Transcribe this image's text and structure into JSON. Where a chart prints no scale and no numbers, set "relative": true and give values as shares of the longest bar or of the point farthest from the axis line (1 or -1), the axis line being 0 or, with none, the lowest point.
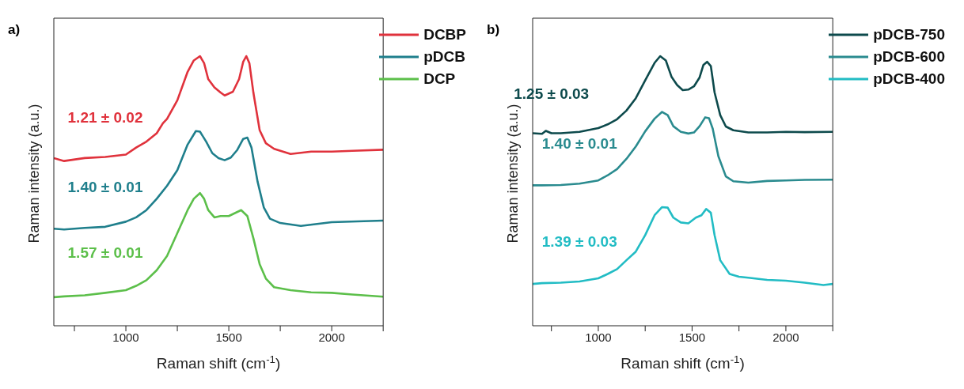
{
  "chart_data": [
    {
      "type": "line",
      "title": "a)",
      "xlabel": "Raman shift (cm$^{-1}$)",
      "ylabel": "Raman intensity (a.u.)",
      "relative": true,
      "xlim": [
        650,
        2250
      ],
      "xticks": [
        {
          "value": 750,
          "label": null
        },
        1000,
        {
          "value": 1250,
          "label": null
        },
        1500,
        {
          "value": 1750,
          "label": null
        },
        2000,
        {
          "value": 2250,
          "label": null
        }
      ],
      "tick_labels": "x",
      "grid": false,
      "legend": "top right",
      "marker": "none",
      "line_style": "solid",
      "annotations": [
        "1.21 ± 0.02",
        "1.40 ± 0.01",
        "1.57 ± 0.01"
      ],
      "series": [
        {
          "name": "DCBP",
          "color": "#e0323c",
          "x": [
            650,
            700,
            800,
            900,
            1000,
            1050,
            1100,
            1150,
            1180,
            1200,
            1250,
            1300,
            1330,
            1360,
            1380,
            1400,
            1430,
            1460,
            1480,
            1520,
            1550,
            1570,
            1585,
            1600,
            1620,
            1650,
            1680,
            1720,
            1800,
            1900,
            2000,
            2100,
            2250
          ],
          "values": [
            0.622,
            0.611,
            0.622,
            0.626,
            0.635,
            0.661,
            0.683,
            0.714,
            0.751,
            0.767,
            0.836,
            0.942,
            0.984,
            1.0,
            0.974,
            0.915,
            0.884,
            0.865,
            0.854,
            0.868,
            0.915,
            0.979,
            1.0,
            0.974,
            0.862,
            0.725,
            0.677,
            0.656,
            0.637,
            0.646,
            0.646,
            0.649,
            0.653
          ]
        },
        {
          "name": "pDCB",
          "color": "#1f7f8c",
          "x": [
            650,
            700,
            800,
            900,
            1000,
            1050,
            1100,
            1150,
            1200,
            1250,
            1300,
            1340,
            1360,
            1390,
            1420,
            1450,
            1480,
            1510,
            1540,
            1570,
            1590,
            1610,
            1640,
            1670,
            1700,
            1750,
            1850,
            2000,
            2250
          ],
          "values": [
            0.36,
            0.357,
            0.363,
            0.367,
            0.386,
            0.402,
            0.429,
            0.471,
            0.519,
            0.577,
            0.672,
            0.722,
            0.72,
            0.683,
            0.64,
            0.622,
            0.614,
            0.624,
            0.651,
            0.693,
            0.698,
            0.661,
            0.534,
            0.439,
            0.397,
            0.381,
            0.37,
            0.384,
            0.39
          ]
        },
        {
          "name": "DCP",
          "color": "#5cbf4a",
          "x": [
            650,
            700,
            800,
            900,
            1000,
            1050,
            1100,
            1150,
            1200,
            1250,
            1300,
            1330,
            1360,
            1380,
            1400,
            1430,
            1460,
            1500,
            1530,
            1560,
            1590,
            1620,
            1650,
            1680,
            1720,
            1800,
            1900,
            2000,
            2100,
            2250
          ],
          "values": [
            0.106,
            0.109,
            0.113,
            0.122,
            0.132,
            0.148,
            0.169,
            0.206,
            0.259,
            0.344,
            0.429,
            0.471,
            0.492,
            0.471,
            0.429,
            0.402,
            0.407,
            0.407,
            0.418,
            0.429,
            0.407,
            0.323,
            0.228,
            0.175,
            0.143,
            0.132,
            0.124,
            0.122,
            0.116,
            0.108
          ]
        }
      ]
    },
    {
      "type": "line",
      "title": "b)",
      "xlabel": "Raman shift (cm$^{-1}$)",
      "ylabel": "Raman intensity (a.u.)",
      "relative": true,
      "xlim": [
        650,
        2250
      ],
      "xticks": [
        {
          "value": 750,
          "label": null
        },
        1000,
        {
          "value": 1250,
          "label": null
        },
        1500,
        {
          "value": 1750,
          "label": null
        },
        2000,
        {
          "value": 2250,
          "label": null
        }
      ],
      "tick_labels": "x",
      "grid": false,
      "legend": "top right",
      "marker": "none",
      "line_style": "solid",
      "annotations": [
        "1.25 ± 0.03",
        "1.40 ± 0.01",
        "1.39 ± 0.03"
      ],
      "series": [
        {
          "name": "pDCB-750",
          "color": "#0d4a4c",
          "x": [
            650,
            700,
            720,
            750,
            800,
            900,
            1000,
            1050,
            1100,
            1150,
            1200,
            1250,
            1300,
            1330,
            1360,
            1390,
            1420,
            1450,
            1480,
            1510,
            1540,
            1560,
            1580,
            1600,
            1620,
            1650,
            1680,
            1720,
            1800,
            1900,
            2000,
            2100,
            2250
          ],
          "values": [
            0.714,
            0.712,
            0.723,
            0.714,
            0.714,
            0.719,
            0.733,
            0.747,
            0.766,
            0.798,
            0.844,
            0.91,
            0.975,
            1.0,
            0.984,
            0.924,
            0.893,
            0.874,
            0.876,
            0.888,
            0.921,
            0.967,
            0.979,
            0.963,
            0.865,
            0.781,
            0.739,
            0.725,
            0.717,
            0.717,
            0.719,
            0.718,
            0.719
          ]
        },
        {
          "name": "pDCB-600",
          "color": "#2a8b8f",
          "x": [
            650,
            700,
            800,
            900,
            1000,
            1050,
            1100,
            1150,
            1200,
            1250,
            1300,
            1340,
            1370,
            1400,
            1440,
            1480,
            1510,
            1540,
            1570,
            1590,
            1610,
            1640,
            1680,
            1720,
            1800,
            1900,
            2000,
            2100,
            2250
          ],
          "values": [
            0.521,
            0.521,
            0.522,
            0.527,
            0.539,
            0.558,
            0.581,
            0.619,
            0.665,
            0.721,
            0.768,
            0.793,
            0.781,
            0.74,
            0.719,
            0.713,
            0.717,
            0.74,
            0.773,
            0.77,
            0.731,
            0.629,
            0.554,
            0.536,
            0.531,
            0.537,
            0.539,
            0.541,
            0.542
          ]
        },
        {
          "name": "pDCB-400",
          "color": "#22bcc4",
          "x": [
            650,
            700,
            800,
            900,
            1000,
            1050,
            1100,
            1150,
            1200,
            1250,
            1300,
            1340,
            1370,
            1400,
            1440,
            1480,
            1520,
            1550,
            1575,
            1600,
            1620,
            1650,
            1700,
            1750,
            1800,
            1900,
            2000,
            2100,
            2200,
            2250
          ],
          "values": [
            0.155,
            0.158,
            0.16,
            0.164,
            0.176,
            0.192,
            0.21,
            0.243,
            0.275,
            0.336,
            0.41,
            0.44,
            0.438,
            0.401,
            0.383,
            0.38,
            0.401,
            0.41,
            0.433,
            0.419,
            0.336,
            0.243,
            0.192,
            0.182,
            0.178,
            0.17,
            0.167,
            0.16,
            0.151,
            0.155
          ]
        }
      ]
    }
  ]
}
